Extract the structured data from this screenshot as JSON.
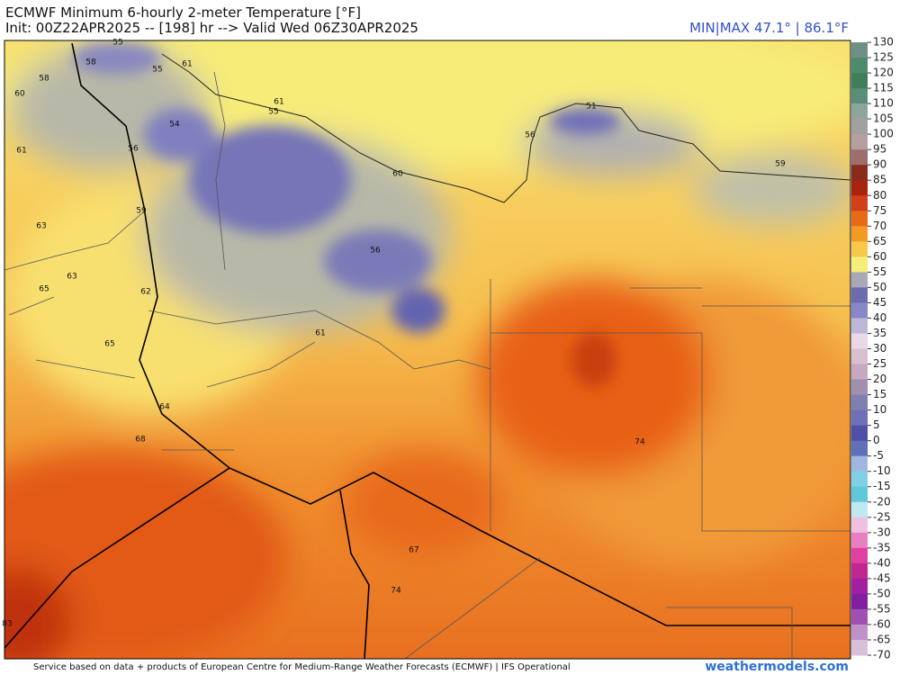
{
  "header": {
    "title": "ECMWF Minimum 6-hourly 2-meter Temperature [°F]",
    "subtitle": "Init: 00Z22APR2025 -- [198] hr --> Valid Wed 06Z30APR2025",
    "minmax": "MIN|MAX 47.1° | 86.1°F"
  },
  "map": {
    "labels": [
      "55",
      "58",
      "55",
      "61",
      "60",
      "58",
      "54",
      "61",
      "55",
      "56",
      "61",
      "56",
      "51",
      "60",
      "59",
      "59",
      "63",
      "56",
      "63",
      "65",
      "62",
      "61",
      "65",
      "64",
      "68",
      "74",
      "67",
      "74",
      "83"
    ]
  },
  "colorbar": {
    "ticks": [
      130,
      125,
      120,
      115,
      110,
      105,
      100,
      95,
      90,
      85,
      80,
      75,
      70,
      65,
      60,
      55,
      50,
      45,
      40,
      35,
      30,
      25,
      20,
      15,
      10,
      5,
      0,
      -5,
      -10,
      -15,
      -20,
      -25,
      -30,
      -35,
      -40,
      -45,
      -50,
      -55,
      -60,
      -65,
      -70
    ],
    "colors": [
      "#6e8f86",
      "#4f8a6a",
      "#3e7f5a",
      "#5b8e76",
      "#8ea69a",
      "#a3a0a0",
      "#b5a0a0",
      "#9c6f6c",
      "#8a2b1c",
      "#a8240f",
      "#d2401a",
      "#e76a16",
      "#f39a25",
      "#f8c84a",
      "#f6ee7a",
      "#a8a8b8",
      "#6b6bb0",
      "#8888c8",
      "#bbb8d8",
      "#e8d8e8",
      "#d8c0d0",
      "#c8a8c0",
      "#a090b0",
      "#8080b0",
      "#7070b8",
      "#5050a8",
      "#6070b8",
      "#a0b8e0",
      "#80d0e8",
      "#60c8d8",
      "#c0e8f0",
      "#f0c0e0",
      "#e880c0",
      "#e040a0",
      "#c02890",
      "#a020a0",
      "#8020a0",
      "#a050b0",
      "#c090c8",
      "#d8c0d8"
    ]
  },
  "footer": {
    "credit": "Service based on data + products of European Centre for Medium-Range Weather Forecasts (ECMWF) | IFS Operational",
    "site": "weathermodels.com"
  }
}
